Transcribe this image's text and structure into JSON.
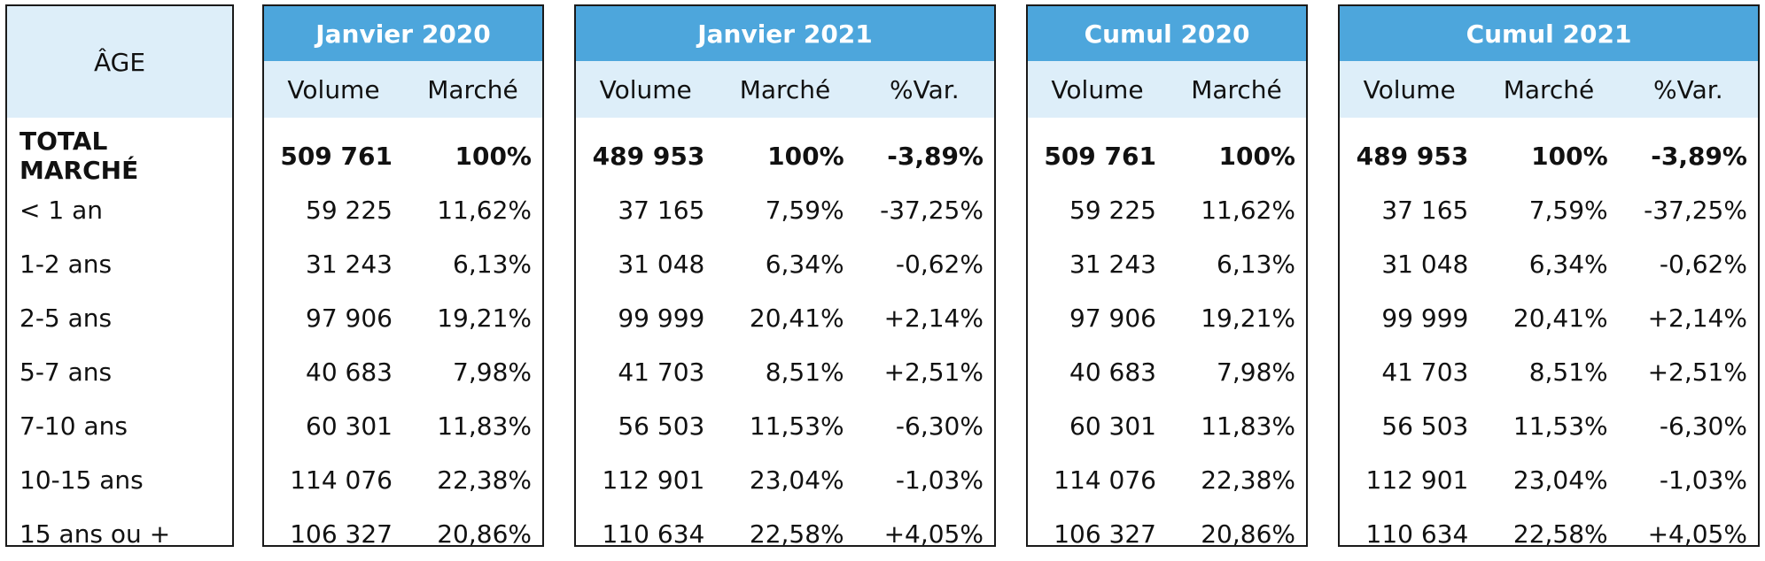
{
  "age": {
    "header": "ÂGE",
    "labels": [
      "TOTAL MARCHÉ",
      "< 1 an",
      "1-2 ans",
      "2-5 ans",
      "5-7 ans",
      "7-10 ans",
      "10-15 ans",
      "15 ans ou +"
    ]
  },
  "jan2020": {
    "title": "Janvier 2020",
    "cols": [
      "Volume",
      "Marché"
    ],
    "rows": [
      [
        "509 761",
        "100%"
      ],
      [
        "59 225",
        "11,62%"
      ],
      [
        "31 243",
        "6,13%"
      ],
      [
        "97 906",
        "19,21%"
      ],
      [
        "40 683",
        "7,98%"
      ],
      [
        "60 301",
        "11,83%"
      ],
      [
        "114 076",
        "22,38%"
      ],
      [
        "106 327",
        "20,86%"
      ]
    ]
  },
  "jan2021": {
    "title": "Janvier 2021",
    "cols": [
      "Volume",
      "Marché",
      "%Var."
    ],
    "rows": [
      [
        "489 953",
        "100%",
        "-3,89%"
      ],
      [
        "37 165",
        "7,59%",
        "-37,25%"
      ],
      [
        "31 048",
        "6,34%",
        "-0,62%"
      ],
      [
        "99 999",
        "20,41%",
        "+2,14%"
      ],
      [
        "41 703",
        "8,51%",
        "+2,51%"
      ],
      [
        "56 503",
        "11,53%",
        "-6,30%"
      ],
      [
        "112 901",
        "23,04%",
        "-1,03%"
      ],
      [
        "110 634",
        "22,58%",
        "+4,05%"
      ]
    ]
  },
  "cum2020": {
    "title": "Cumul 2020",
    "cols": [
      "Volume",
      "Marché"
    ],
    "rows": [
      [
        "509 761",
        "100%"
      ],
      [
        "59 225",
        "11,62%"
      ],
      [
        "31 243",
        "6,13%"
      ],
      [
        "97 906",
        "19,21%"
      ],
      [
        "40 683",
        "7,98%"
      ],
      [
        "60 301",
        "11,83%"
      ],
      [
        "114 076",
        "22,38%"
      ],
      [
        "106 327",
        "20,86%"
      ]
    ]
  },
  "cum2021": {
    "title": "Cumul 2021",
    "cols": [
      "Volume",
      "Marché",
      "%Var."
    ],
    "rows": [
      [
        "489 953",
        "100%",
        "-3,89%"
      ],
      [
        "37 165",
        "7,59%",
        "-37,25%"
      ],
      [
        "31 048",
        "6,34%",
        "-0,62%"
      ],
      [
        "99 999",
        "20,41%",
        "+2,14%"
      ],
      [
        "41 703",
        "8,51%",
        "+2,51%"
      ],
      [
        "56 503",
        "11,53%",
        "-6,30%"
      ],
      [
        "112 901",
        "23,04%",
        "-1,03%"
      ],
      [
        "110 634",
        "22,58%",
        "+4,05%"
      ]
    ]
  }
}
